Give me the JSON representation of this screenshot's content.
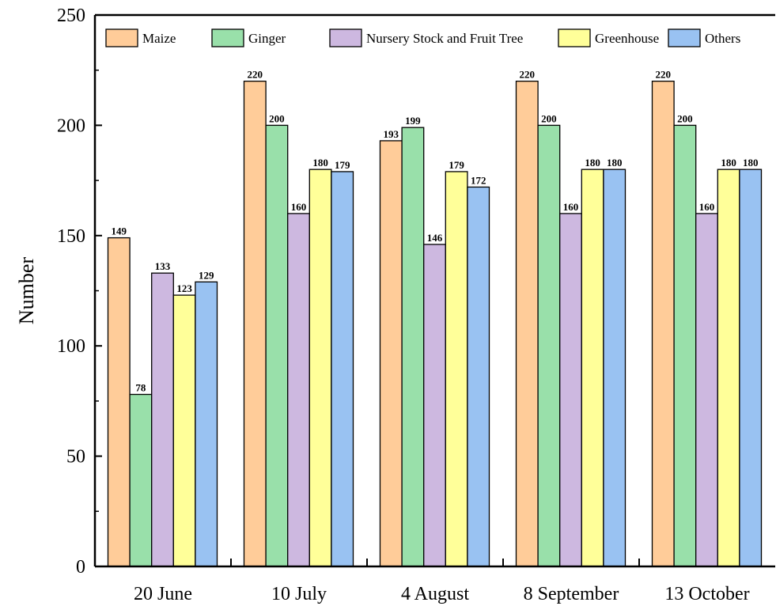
{
  "chart_data": {
    "type": "bar",
    "ylabel": "Number",
    "xlabel": "",
    "title": "",
    "ylim": [
      0,
      250
    ],
    "yticks": [
      0,
      50,
      100,
      150,
      200,
      250
    ],
    "grid": false,
    "legend_position": "top",
    "categories": [
      "20 June",
      "10 July",
      "4 August",
      "8 September",
      "13 October"
    ],
    "series": [
      {
        "name": "Maize",
        "color": "#FFCC99",
        "values": [
          149,
          220,
          193,
          220,
          220
        ]
      },
      {
        "name": "Ginger",
        "color": "#99E0AA",
        "values": [
          78,
          200,
          199,
          200,
          200
        ]
      },
      {
        "name": "Nursery Stock and Fruit Tree",
        "color": "#CDB8E0",
        "values": [
          133,
          160,
          146,
          160,
          160
        ]
      },
      {
        "name": "Greenhouse",
        "color": "#FFFF99",
        "values": [
          123,
          180,
          179,
          180,
          180
        ]
      },
      {
        "name": "Others",
        "color": "#99C2F2",
        "values": [
          129,
          179,
          172,
          180,
          180
        ]
      }
    ]
  }
}
